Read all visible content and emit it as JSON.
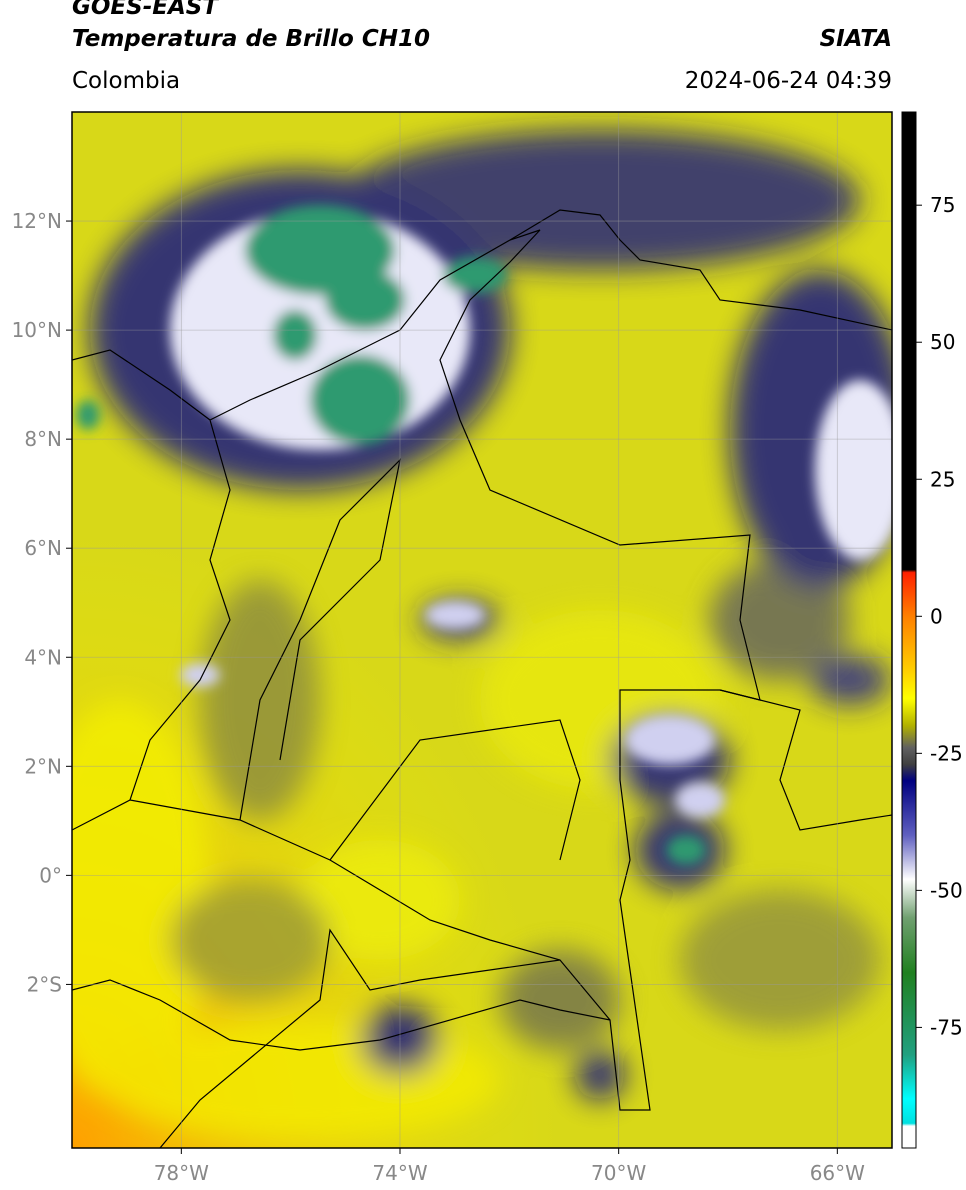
{
  "header": {
    "title": "GOES-EAST",
    "subtitle": "Temperatura de Brillo CH10",
    "region": "Colombia",
    "source": "SIATA",
    "datetime": "2024-06-24 04:39"
  },
  "map": {
    "xlim": [
      -80,
      -65
    ],
    "ylim": [
      -5,
      14
    ],
    "grid": true,
    "xticks": [
      {
        "value": -78,
        "label": "78°W"
      },
      {
        "value": -74,
        "label": "74°W"
      },
      {
        "value": -70,
        "label": "70°W"
      },
      {
        "value": -66,
        "label": "66°W"
      }
    ],
    "yticks": [
      {
        "value": 12,
        "label": "12°N"
      },
      {
        "value": 10,
        "label": "10°N"
      },
      {
        "value": 8,
        "label": "8°N"
      },
      {
        "value": 6,
        "label": "6°N"
      },
      {
        "value": 4,
        "label": "4°N"
      },
      {
        "value": 2,
        "label": "2°N"
      },
      {
        "value": 0,
        "label": "0°"
      },
      {
        "value": -2,
        "label": "2°S"
      }
    ]
  },
  "colorbar": {
    "lim": [
      -97,
      92
    ],
    "ticks": [
      75,
      50,
      25,
      0,
      -25,
      -50,
      -75
    ],
    "colormap": [
      {
        "value": 92,
        "color": "#000000"
      },
      {
        "value": 8.5,
        "color": "#000000"
      },
      {
        "value": 8,
        "color": "#ff2000"
      },
      {
        "value": 0,
        "color": "#ff8000"
      },
      {
        "value": -10,
        "color": "#ffd000"
      },
      {
        "value": -15,
        "color": "#ffff00"
      },
      {
        "value": -20,
        "color": "#b0b000"
      },
      {
        "value": -24,
        "color": "#606060"
      },
      {
        "value": -27,
        "color": "#404040"
      },
      {
        "value": -30,
        "color": "#000080"
      },
      {
        "value": -40,
        "color": "#6060c0"
      },
      {
        "value": -48,
        "color": "#ffffff"
      },
      {
        "value": -55,
        "color": "#70a070"
      },
      {
        "value": -65,
        "color": "#208020"
      },
      {
        "value": -80,
        "color": "#20a080"
      },
      {
        "value": -88,
        "color": "#00ffff"
      },
      {
        "value": -92.5,
        "color": "#00e0e0"
      },
      {
        "value": -93,
        "color": "#ffffff"
      },
      {
        "value": -97,
        "color": "#ffffff"
      }
    ]
  }
}
